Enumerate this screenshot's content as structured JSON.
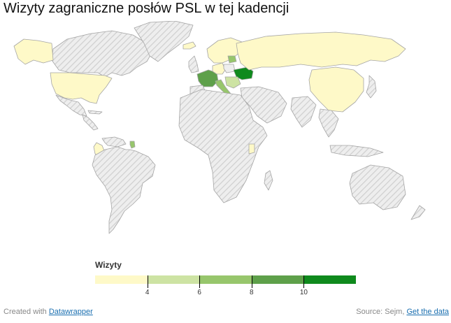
{
  "header": {
    "title": "Wizyty zagraniczne posłów PSL w tej kadencji"
  },
  "legend": {
    "title": "Wizyty",
    "stops": [
      {
        "color": "#fef9c8",
        "from": 2,
        "to": 4
      },
      {
        "color": "#cde3a3",
        "from": 4,
        "to": 6
      },
      {
        "color": "#97c66c",
        "from": 6,
        "to": 8
      },
      {
        "color": "#5ea04a",
        "from": 8,
        "to": 10
      },
      {
        "color": "#0f8a1d",
        "from": 10,
        "to": 12
      }
    ],
    "ticks": [
      "4",
      "6",
      "8",
      "10"
    ]
  },
  "map": {
    "no_data_pattern": "diagonal-hatch",
    "colors": {
      "no_data": "#eeeeee",
      "hatch": "#cfcfcf",
      "border": "#a5a5a5"
    },
    "regions": [
      {
        "name": "Canada",
        "fill": "hatch"
      },
      {
        "name": "Alaska",
        "fill": "#fef9c8"
      },
      {
        "name": "Greenland",
        "fill": "hatch"
      },
      {
        "name": "United States",
        "fill": "#fef9c8"
      },
      {
        "name": "Mexico",
        "fill": "hatch"
      },
      {
        "name": "Central America",
        "fill": "hatch"
      },
      {
        "name": "Cuba",
        "fill": "hatch"
      },
      {
        "name": "Colombia",
        "fill": "#fef9c8"
      },
      {
        "name": "Venezuela",
        "fill": "hatch"
      },
      {
        "name": "French Guiana",
        "fill": "#97c66c"
      },
      {
        "name": "South America",
        "fill": "hatch"
      },
      {
        "name": "Iceland",
        "fill": "#fef9c8"
      },
      {
        "name": "United Kingdom",
        "fill": "hatch"
      },
      {
        "name": "Scandinavia",
        "fill": "#fef9c8"
      },
      {
        "name": "France",
        "fill": "#5ea04a"
      },
      {
        "name": "Iberia",
        "fill": "hatch"
      },
      {
        "name": "Italy",
        "fill": "#97c66c"
      },
      {
        "name": "Germany",
        "fill": "#fef9c8"
      },
      {
        "name": "Poland",
        "fill": "#eeeeee"
      },
      {
        "name": "Lithuania",
        "fill": "#97c66c"
      },
      {
        "name": "Ukraine",
        "fill": "#0f8a1d"
      },
      {
        "name": "Balkans",
        "fill": "#cde3a3"
      },
      {
        "name": "Russia",
        "fill": "#fef9c8"
      },
      {
        "name": "China",
        "fill": "#fef9c8"
      },
      {
        "name": "Japan",
        "fill": "hatch"
      },
      {
        "name": "Middle East",
        "fill": "hatch"
      },
      {
        "name": "India",
        "fill": "hatch"
      },
      {
        "name": "Southeast Asia",
        "fill": "hatch"
      },
      {
        "name": "Indonesia",
        "fill": "hatch"
      },
      {
        "name": "Africa",
        "fill": "hatch"
      },
      {
        "name": "Kenya",
        "fill": "#fef9c8"
      },
      {
        "name": "Madagascar",
        "fill": "hatch"
      },
      {
        "name": "Australia",
        "fill": "hatch"
      },
      {
        "name": "New Zealand",
        "fill": "hatch"
      }
    ]
  },
  "footer": {
    "created_prefix": "Created with",
    "created_link": "Datawrapper",
    "source_prefix": "Source: Sejm,",
    "data_link": "Get the data"
  }
}
